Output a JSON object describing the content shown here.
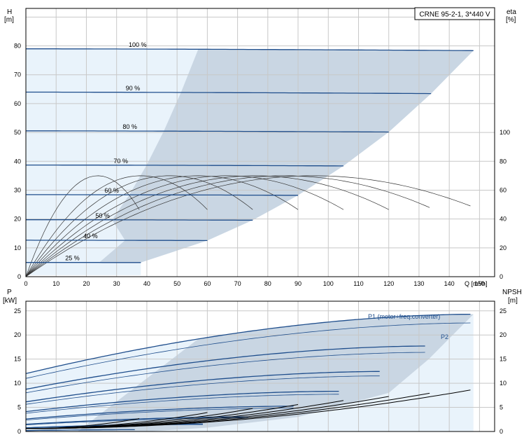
{
  "colors": {
    "grid": "#c8c8c8",
    "axis": "#000000",
    "area_dark": "#c9d6e3",
    "area_light": "#e9f3fb",
    "curve_blue": "#1f4e8c",
    "curve_black": "#000000",
    "curve_thin": "#333333"
  },
  "chart_data": [
    {
      "type": "line",
      "title": "CRNE 95-2-1, 3*440 V",
      "ylabel_left": "H",
      "ylabel_left_unit": "[m]",
      "ylabel_right": "eta",
      "ylabel_right_unit": "[%]",
      "xlabel": "Q [m³/h]",
      "xlim": [
        0,
        155
      ],
      "ylim": [
        0,
        93
      ],
      "x_ticks": [
        "0",
        "10",
        "20",
        "30",
        "40",
        "50",
        "60",
        "70",
        "80",
        "90",
        "100",
        "110",
        "120",
        "130",
        "140",
        "150"
      ],
      "y_ticks_left": [
        "0",
        "10",
        "20",
        "30",
        "40",
        "50",
        "60",
        "70",
        "80"
      ],
      "y_ticks_right": [
        "0",
        "20",
        "40",
        "60",
        "80",
        "100"
      ],
      "eta_scale": {
        "eta_per_H": 2
      },
      "speed_curves": [
        {
          "label": "100 %",
          "speed": 1.0,
          "qmax": 148
        },
        {
          "label": "90 %",
          "speed": 0.9,
          "qmax": 134
        },
        {
          "label": "80 %",
          "speed": 0.8,
          "qmax": 120
        },
        {
          "label": "70 %",
          "speed": 0.7,
          "qmax": 105
        },
        {
          "label": "60 %",
          "speed": 0.6,
          "qmax": 90
        },
        {
          "label": "50 %",
          "speed": 0.5,
          "qmax": 75
        },
        {
          "label": "40 %",
          "speed": 0.4,
          "qmax": 60
        },
        {
          "label": "25 %",
          "speed": 0.25,
          "qmax": 38
        }
      ],
      "label_positions_q": [
        34,
        33,
        32,
        29,
        26,
        23,
        19,
        13
      ],
      "qh_model": {
        "H0": 79,
        "a": 0.0018,
        "b": 1.66e-05
      },
      "eta_model": {
        "peak": 70,
        "q_bep": 95
      }
    },
    {
      "type": "line",
      "ylabel_left": "P",
      "ylabel_left_unit": "[kW]",
      "ylabel_right": "NPSH",
      "ylabel_right_unit": "[m]",
      "xlim": [
        0,
        155
      ],
      "ylim": [
        0,
        27
      ],
      "x_ticks": [
        "0",
        "10",
        "20",
        "30",
        "40",
        "50",
        "60",
        "70",
        "80",
        "90",
        "100",
        "110",
        "120",
        "130",
        "140",
        "150"
      ],
      "y_ticks_left": [
        "0",
        "5",
        "10",
        "15",
        "20",
        "25"
      ],
      "y_ticks_right": [
        "0",
        "5",
        "10",
        "15",
        "20",
        "25"
      ],
      "series_labels": [
        {
          "name": "P1 (motor+freq.converter)"
        },
        {
          "name": "P2"
        }
      ],
      "power_model": {
        "P2_0": 11,
        "P2_max": 22.5,
        "P1_0": 12,
        "P1_max": 24.3,
        "q_ref": 148
      },
      "npsh_model": {
        "n0": 0.6,
        "k": 0.00037
      }
    }
  ]
}
